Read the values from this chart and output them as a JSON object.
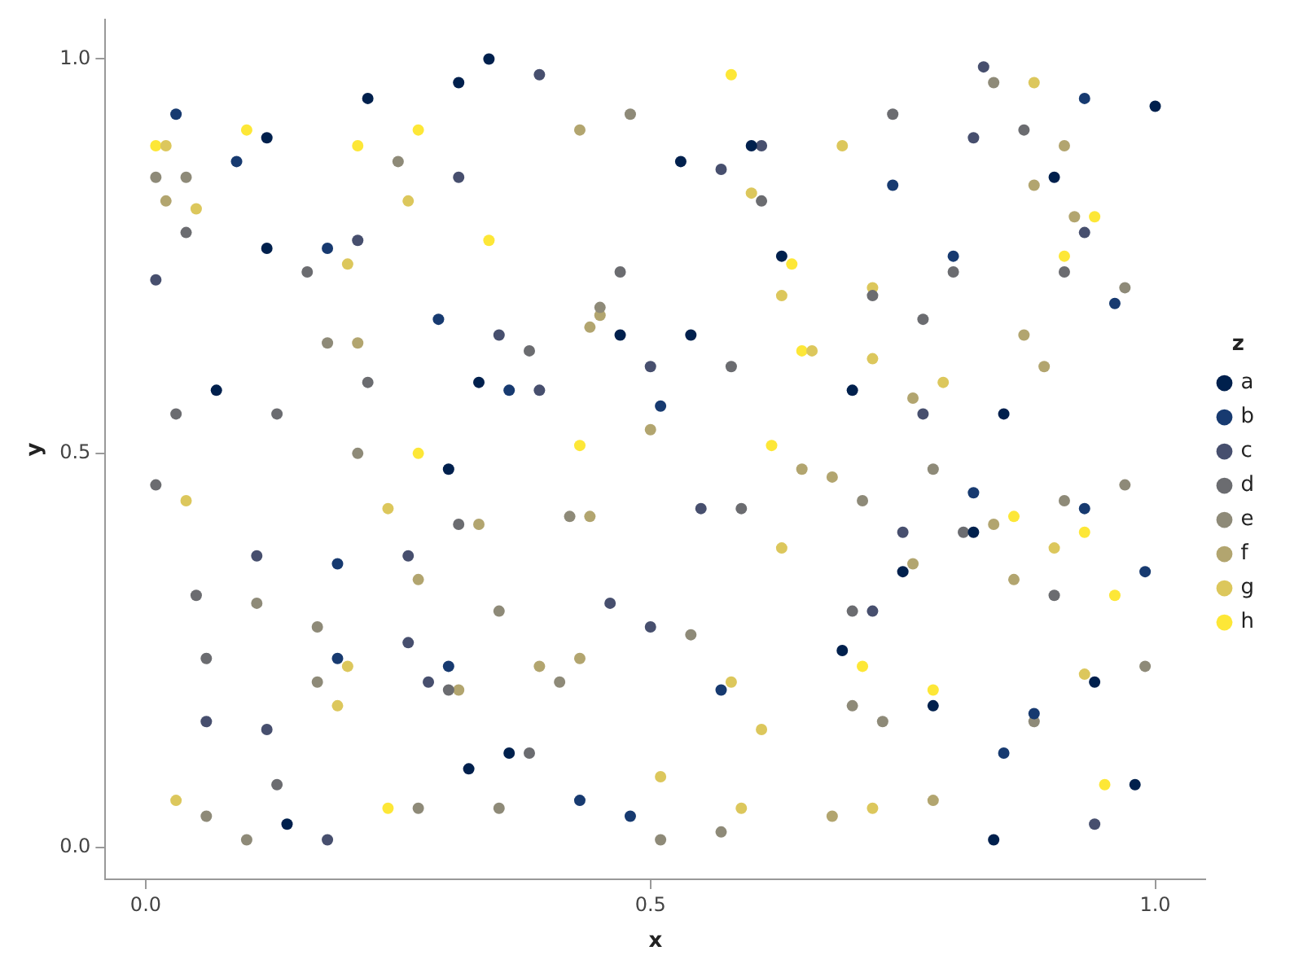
{
  "chart_data": {
    "type": "scatter",
    "xlabel": "x",
    "ylabel": "y",
    "legend_title": "z",
    "legend": "right",
    "grid": false,
    "marker": "circle",
    "xlim": [
      -0.04,
      1.05
    ],
    "ylim": [
      -0.04,
      1.05
    ],
    "xticks": [
      {
        "value": 0,
        "label": "0.0"
      },
      {
        "value": 0.5,
        "label": "0.5"
      },
      {
        "value": 1,
        "label": "1.0"
      }
    ],
    "yticks": [
      {
        "value": 0,
        "label": "0.0"
      },
      {
        "value": 0.5,
        "label": "0.5"
      },
      {
        "value": 1,
        "label": "1.0"
      }
    ],
    "series": [
      {
        "name": "a",
        "color": "#00204d",
        "x": [
          0.22,
          0.31,
          0.12,
          0.12,
          0.07,
          0.33,
          0.3,
          0.34,
          0.6,
          0.53,
          0.63,
          0.47,
          0.54,
          1.0,
          0.9,
          0.7,
          0.85,
          0.32,
          0.14,
          0.36,
          0.82,
          0.75,
          0.69,
          0.94,
          0.78,
          0.98,
          0.84
        ],
        "values": [
          0.95,
          0.97,
          0.9,
          0.76,
          0.58,
          0.59,
          0.48,
          1.0,
          0.89,
          0.87,
          0.75,
          0.65,
          0.65,
          0.94,
          0.85,
          0.58,
          0.55,
          0.1,
          0.03,
          0.12,
          0.4,
          0.35,
          0.25,
          0.21,
          0.18,
          0.08,
          0.01
        ]
      },
      {
        "name": "b",
        "color": "#173a70",
        "x": [
          0.03,
          0.09,
          0.18,
          0.29,
          0.36,
          0.51,
          0.93,
          0.74,
          0.8,
          0.96,
          0.19,
          0.19,
          0.3,
          0.57,
          0.43,
          0.48,
          0.82,
          0.93,
          0.99,
          0.88,
          0.85
        ],
        "values": [
          0.93,
          0.87,
          0.76,
          0.67,
          0.58,
          0.56,
          0.95,
          0.84,
          0.75,
          0.69,
          0.36,
          0.24,
          0.23,
          0.2,
          0.06,
          0.04,
          0.45,
          0.43,
          0.35,
          0.17,
          0.12
        ]
      },
      {
        "name": "c",
        "color": "#474f6e",
        "x": [
          0.21,
          0.01,
          0.31,
          0.39,
          0.61,
          0.57,
          0.35,
          0.5,
          0.39,
          0.83,
          0.82,
          0.93,
          0.77,
          0.11,
          0.26,
          0.26,
          0.28,
          0.06,
          0.12,
          0.18,
          0.55,
          0.46,
          0.5,
          0.75,
          0.72,
          0.94
        ],
        "values": [
          0.77,
          0.72,
          0.85,
          0.98,
          0.89,
          0.86,
          0.65,
          0.61,
          0.58,
          0.99,
          0.9,
          0.78,
          0.55,
          0.37,
          0.37,
          0.26,
          0.21,
          0.16,
          0.15,
          0.01,
          0.43,
          0.31,
          0.28,
          0.4,
          0.3,
          0.03
        ]
      },
      {
        "name": "d",
        "color": "#6b6c70",
        "x": [
          0.04,
          0.16,
          0.22,
          0.03,
          0.13,
          0.61,
          0.47,
          0.38,
          0.58,
          0.74,
          0.87,
          0.8,
          0.91,
          0.72,
          0.77,
          0.01,
          0.31,
          0.05,
          0.06,
          0.3,
          0.13,
          0.59,
          0.38,
          0.81,
          0.9,
          0.7
        ],
        "values": [
          0.78,
          0.73,
          0.59,
          0.55,
          0.55,
          0.82,
          0.73,
          0.63,
          0.61,
          0.93,
          0.91,
          0.73,
          0.73,
          0.7,
          0.67,
          0.46,
          0.41,
          0.32,
          0.24,
          0.2,
          0.08,
          0.43,
          0.12,
          0.4,
          0.32,
          0.3
        ]
      },
      {
        "name": "e",
        "color": "#8e8a78",
        "x": [
          0.01,
          0.04,
          0.18,
          0.21,
          0.25,
          0.48,
          0.45,
          0.84,
          0.97,
          0.11,
          0.17,
          0.17,
          0.06,
          0.27,
          0.1,
          0.42,
          0.35,
          0.54,
          0.41,
          0.35,
          0.51,
          0.57,
          0.78,
          0.97,
          0.71,
          0.91,
          0.99,
          0.7,
          0.73,
          0.88
        ],
        "values": [
          0.85,
          0.85,
          0.64,
          0.5,
          0.87,
          0.93,
          0.685,
          0.97,
          0.71,
          0.31,
          0.28,
          0.21,
          0.04,
          0.05,
          0.01,
          0.42,
          0.3,
          0.27,
          0.21,
          0.05,
          0.01,
          0.02,
          0.48,
          0.46,
          0.44,
          0.44,
          0.23,
          0.18,
          0.16,
          0.16
        ]
      },
      {
        "name": "f",
        "color": "#b2a56f",
        "x": [
          0.02,
          0.21,
          0.43,
          0.45,
          0.44,
          0.5,
          0.91,
          0.88,
          0.92,
          0.87,
          0.89,
          0.76,
          0.33,
          0.27,
          0.31,
          0.44,
          0.65,
          0.68,
          0.43,
          0.39,
          0.68,
          0.84,
          0.76,
          0.86,
          0.78
        ],
        "values": [
          0.82,
          0.64,
          0.91,
          0.675,
          0.66,
          0.53,
          0.89,
          0.84,
          0.8,
          0.65,
          0.61,
          0.57,
          0.41,
          0.34,
          0.2,
          0.42,
          0.48,
          0.47,
          0.24,
          0.23,
          0.04,
          0.41,
          0.36,
          0.34,
          0.06
        ]
      },
      {
        "name": "g",
        "color": "#dcc75c",
        "x": [
          0.02,
          0.05,
          0.2,
          0.26,
          0.69,
          0.6,
          0.63,
          0.66,
          0.88,
          0.72,
          0.72,
          0.79,
          0.04,
          0.24,
          0.2,
          0.19,
          0.03,
          0.63,
          0.58,
          0.61,
          0.51,
          0.59,
          0.9,
          0.93,
          0.72
        ],
        "values": [
          0.89,
          0.81,
          0.74,
          0.82,
          0.89,
          0.83,
          0.7,
          0.63,
          0.97,
          0.71,
          0.62,
          0.59,
          0.44,
          0.43,
          0.23,
          0.18,
          0.06,
          0.38,
          0.21,
          0.15,
          0.09,
          0.05,
          0.38,
          0.22,
          0.05
        ]
      },
      {
        "name": "h",
        "color": "#fde737",
        "x": [
          0.1,
          0.01,
          0.27,
          0.27,
          0.21,
          0.58,
          0.34,
          0.64,
          0.65,
          0.43,
          0.62,
          0.94,
          0.91,
          0.24,
          0.86,
          0.93,
          0.96,
          0.71,
          0.78,
          0.95
        ],
        "values": [
          0.91,
          0.89,
          0.5,
          0.91,
          0.89,
          0.98,
          0.77,
          0.74,
          0.63,
          0.51,
          0.51,
          0.8,
          0.75,
          0.05,
          0.42,
          0.4,
          0.32,
          0.23,
          0.2,
          0.08
        ]
      }
    ]
  }
}
